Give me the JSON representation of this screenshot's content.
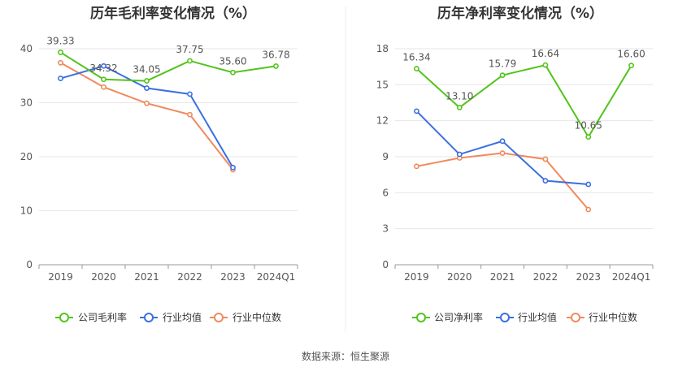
{
  "source_note": "数据来源：恒生聚源",
  "colors": {
    "company": "#52c41a",
    "industry_avg": "#3b6fe0",
    "industry_median": "#f08a5d",
    "grid": "#e6e6e6",
    "axis": "#999999",
    "text": "#555555",
    "title": "#333333"
  },
  "chart_data": [
    {
      "type": "line",
      "title": "历年毛利率变化情况（%）",
      "categories": [
        "2019",
        "2020",
        "2021",
        "2022",
        "2023",
        "2024Q1"
      ],
      "ylim": [
        0,
        40
      ],
      "yticks": [
        0,
        10,
        20,
        30,
        40
      ],
      "grid": true,
      "legend_position": "bottom",
      "series": [
        {
          "name": "公司毛利率",
          "color_key": "company",
          "values": [
            39.33,
            34.32,
            34.05,
            37.75,
            35.6,
            36.78
          ],
          "labels": [
            "39.33",
            "34.32",
            "34.05",
            "37.75",
            "35.60",
            "36.78"
          ]
        },
        {
          "name": "行业均值",
          "color_key": "industry_avg",
          "values": [
            34.5,
            36.8,
            32.7,
            31.6,
            18.0,
            null
          ]
        },
        {
          "name": "行业中位数",
          "color_key": "industry_median",
          "values": [
            37.4,
            32.9,
            29.9,
            27.8,
            17.6,
            null
          ]
        }
      ]
    },
    {
      "type": "line",
      "title": "历年净利率变化情况（%）",
      "categories": [
        "2019",
        "2020",
        "2021",
        "2022",
        "2023",
        "2024Q1"
      ],
      "ylim": [
        0,
        18
      ],
      "yticks": [
        0,
        3,
        6,
        9,
        12,
        15,
        18
      ],
      "grid": true,
      "legend_position": "bottom",
      "series": [
        {
          "name": "公司净利率",
          "color_key": "company",
          "values": [
            16.34,
            13.1,
            15.79,
            16.64,
            10.65,
            16.6
          ],
          "labels": [
            "16.34",
            "13.10",
            "15.79",
            "16.64",
            "10.65",
            "16.60"
          ]
        },
        {
          "name": "行业均值",
          "color_key": "industry_avg",
          "values": [
            12.8,
            9.2,
            10.3,
            7.0,
            6.7,
            null
          ]
        },
        {
          "name": "行业中位数",
          "color_key": "industry_median",
          "values": [
            8.2,
            8.9,
            9.3,
            8.8,
            4.6,
            null
          ]
        }
      ]
    }
  ]
}
